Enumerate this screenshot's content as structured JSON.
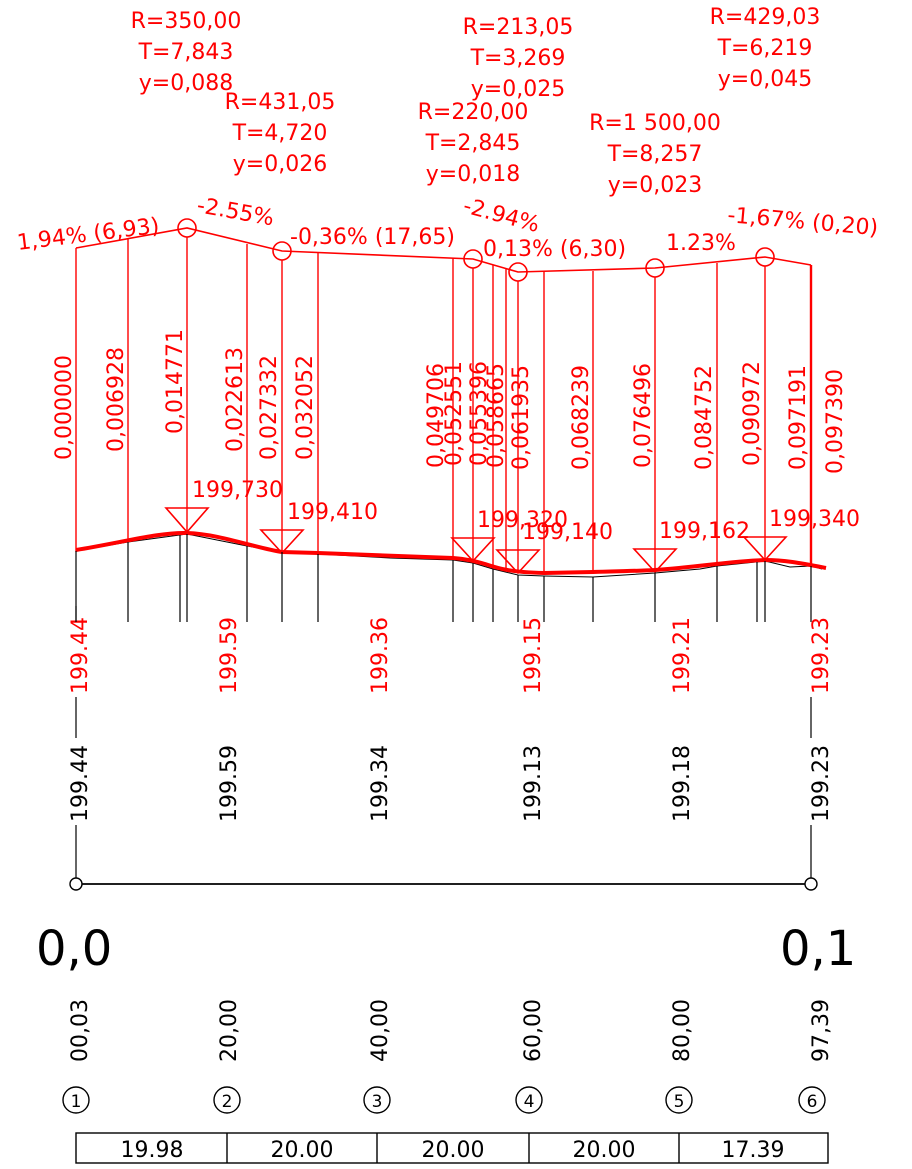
{
  "colors": {
    "design": "#ff0000",
    "ground": "#000000",
    "background": "#ffffff"
  },
  "curves": [
    {
      "radius": "R=350,00",
      "tangent": "T=7,843",
      "ordinate": "y=0,088"
    },
    {
      "radius": "R=431,05",
      "tangent": "T=4,720",
      "ordinate": "y=0,026"
    },
    {
      "radius": "R=220,00",
      "tangent": "T=2,845",
      "ordinate": "y=0,018"
    },
    {
      "radius": "R=213,05",
      "tangent": "T=3,269",
      "ordinate": "y=0,025"
    },
    {
      "radius": "R=1  500,00",
      "tangent": "T=8,257",
      "ordinate": "y=0,023"
    },
    {
      "radius": "R=429,03",
      "tangent": "T=6,219",
      "ordinate": "y=0,045"
    }
  ],
  "grades": [
    {
      "label": "1,94% (6,93)"
    },
    {
      "label": "-2.55%"
    },
    {
      "label": "-0,36% (17,65)"
    },
    {
      "label": "-2.94%"
    },
    {
      "label": "0,13% (6,30)"
    },
    {
      "label": "1.23%"
    },
    {
      "label": "-1,67% (0,20)"
    }
  ],
  "chainages": [
    {
      "value": "0,000000"
    },
    {
      "value": "0,006928"
    },
    {
      "value": "0,014771"
    },
    {
      "value": "0,022613"
    },
    {
      "value": "0,027332"
    },
    {
      "value": "0,032052"
    },
    {
      "value": "0,049706"
    },
    {
      "value": "0,052551"
    },
    {
      "value": "0,055396"
    },
    {
      "value": "0,058665"
    },
    {
      "value": "0,061935"
    },
    {
      "value": "0,068239"
    },
    {
      "value": "0,076496"
    },
    {
      "value": "0,084752"
    },
    {
      "value": "0,090972"
    },
    {
      "value": "0,097191"
    },
    {
      "value": "0,097390"
    }
  ],
  "elevation_marks": [
    {
      "value": "199,730"
    },
    {
      "value": "199,410"
    },
    {
      "value": "199,320"
    },
    {
      "value": "199,140"
    },
    {
      "value": "199,162"
    },
    {
      "value": "199,340"
    }
  ],
  "design_levels": [
    {
      "value": "199.44"
    },
    {
      "value": "199.59"
    },
    {
      "value": "199.36"
    },
    {
      "value": "199.15"
    },
    {
      "value": "199.21"
    },
    {
      "value": "199.23"
    }
  ],
  "ground_levels": [
    {
      "value": "199.44"
    },
    {
      "value": "199.59"
    },
    {
      "value": "199.34"
    },
    {
      "value": "199.13"
    },
    {
      "value": "199.18"
    },
    {
      "value": "199.23"
    }
  ],
  "km_marks": [
    {
      "label": "0,0"
    },
    {
      "label": "0,1"
    }
  ],
  "stations": [
    {
      "distance": "00,03",
      "number": "1"
    },
    {
      "distance": "20,00",
      "number": "2"
    },
    {
      "distance": "40,00",
      "number": "3"
    },
    {
      "distance": "60,00",
      "number": "4"
    },
    {
      "distance": "80,00",
      "number": "5"
    },
    {
      "distance": "97,39",
      "number": "6"
    }
  ],
  "segments": [
    {
      "length": "19.98"
    },
    {
      "length": "20.00"
    },
    {
      "length": "20.00"
    },
    {
      "length": "20.00"
    },
    {
      "length": "17.39"
    }
  ]
}
